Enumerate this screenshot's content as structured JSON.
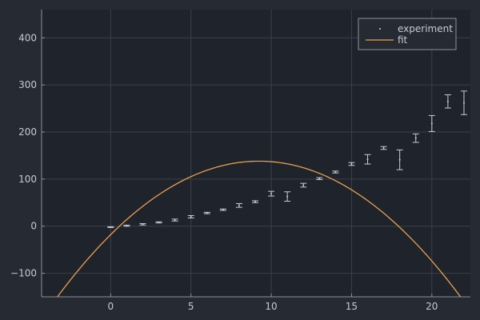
{
  "chart_data": {
    "type": "scatter",
    "title": "",
    "xlabel": "",
    "ylabel": "",
    "xlim": [
      -4.3,
      22.4
    ],
    "ylim": [
      -150,
      460
    ],
    "xticks": [
      0,
      5,
      10,
      15,
      20
    ],
    "yticks": [
      -100,
      0,
      100,
      200,
      300,
      400
    ],
    "xtick_labels": [
      "0",
      "5",
      "10",
      "15",
      "20"
    ],
    "ytick_labels": [
      "−100",
      "0",
      "100",
      "200",
      "300",
      "400"
    ],
    "grid": true,
    "legend_position": "top-right",
    "series": [
      {
        "name": "experiment",
        "kind": "scatter-errorbar",
        "color": "#c9ccd3",
        "x": [
          0,
          1,
          2,
          3,
          4,
          5,
          6,
          7,
          8,
          9,
          10,
          11,
          12,
          13,
          14,
          15,
          16,
          17,
          18,
          19,
          20,
          21,
          22
        ],
        "y": [
          -2,
          1,
          4,
          8,
          13,
          20,
          28,
          35,
          44,
          52,
          69,
          63,
          87,
          101,
          115,
          132,
          142,
          166,
          141,
          187,
          218,
          265,
          262
        ],
        "err": [
          0.8,
          1.2,
          1.5,
          1.2,
          2,
          2.5,
          1.5,
          1.5,
          4,
          2,
          5,
          10,
          4,
          2,
          2,
          3,
          10,
          3,
          21,
          9,
          17,
          14,
          25
        ]
      },
      {
        "name": "fit",
        "kind": "line",
        "color": "#e8a04f",
        "model": "quadratic",
        "coefficients": {
          "a": -1.83,
          "b": 33.8,
          "c": -18
        }
      }
    ]
  }
}
